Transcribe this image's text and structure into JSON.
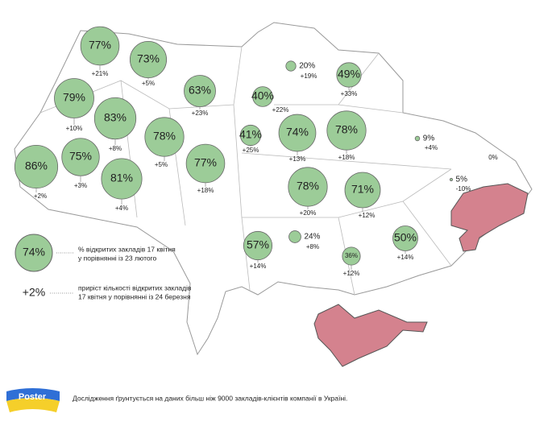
{
  "map": {
    "regions": [
      {
        "value": 77,
        "label": "77%",
        "change": 21,
        "change_label": "+21%"
      },
      {
        "value": 73,
        "label": "73%",
        "change": 5,
        "change_label": "+5%"
      },
      {
        "value": 79,
        "label": "79%",
        "change": 10,
        "change_label": "+10%"
      },
      {
        "value": 83,
        "label": "83%",
        "change": 8,
        "change_label": "+8%"
      },
      {
        "value": 63,
        "label": "63%",
        "change": 23,
        "change_label": "+23%"
      },
      {
        "value": 40,
        "label": "40%",
        "change": 22,
        "change_label": "+22%"
      },
      {
        "value": 20,
        "label": "20%",
        "change": 19,
        "change_label": "+19%"
      },
      {
        "value": 49,
        "label": "49%",
        "change": 33,
        "change_label": "+33%"
      },
      {
        "value": 41,
        "label": "41%",
        "change": 25,
        "change_label": "+25%"
      },
      {
        "value": 74,
        "label": "74%",
        "change": 13,
        "change_label": "+13%"
      },
      {
        "value": 78,
        "label": "78%",
        "change": 18,
        "change_label": "+18%"
      },
      {
        "value": 9,
        "label": "9%",
        "change": 4,
        "change_label": "+4%"
      },
      {
        "value": 0,
        "label": "0%"
      },
      {
        "value": 5,
        "label": "5%",
        "change": -10,
        "change_label": "-10%"
      },
      {
        "value": 78,
        "label": "78%",
        "change": 5,
        "change_label": "+5%"
      },
      {
        "value": 75,
        "label": "75%",
        "change": 3,
        "change_label": "+3%"
      },
      {
        "value": 86,
        "label": "86%",
        "change": 2,
        "change_label": "+2%"
      },
      {
        "value": 81,
        "label": "81%",
        "change": 4,
        "change_label": "+4%"
      },
      {
        "value": 77,
        "label": "77%",
        "change": 18,
        "change_label": "+18%"
      },
      {
        "value": 78,
        "label": "78%",
        "change": 20,
        "change_label": "+20%"
      },
      {
        "value": 71,
        "label": "71%",
        "change": 12,
        "change_label": "+12%"
      },
      {
        "value": 57,
        "label": "57%",
        "change": 14,
        "change_label": "+14%"
      },
      {
        "value": 24,
        "label": "24%",
        "change": 8,
        "change_label": "+8%"
      },
      {
        "value": 36,
        "label": "36%",
        "change": 12,
        "change_label": "+12%"
      },
      {
        "value": 50,
        "label": "50%",
        "change": 14,
        "change_label": "+14%"
      }
    ],
    "legend": {
      "bubble_label": "74%",
      "bubble_text": [
        "% відкритих закладів 17 квітня",
        "у порівнянні із 23 лютого"
      ],
      "change_label": "+2%",
      "change_text": [
        "приріст кількості відкритих закладів",
        "17 квітня у порівнянні із 24 березня"
      ]
    },
    "logo": "Poster",
    "footer": "Дослідження ґрунтується на даних більш ніж 9000 закладів-клієнтів компанії в Україні."
  }
}
